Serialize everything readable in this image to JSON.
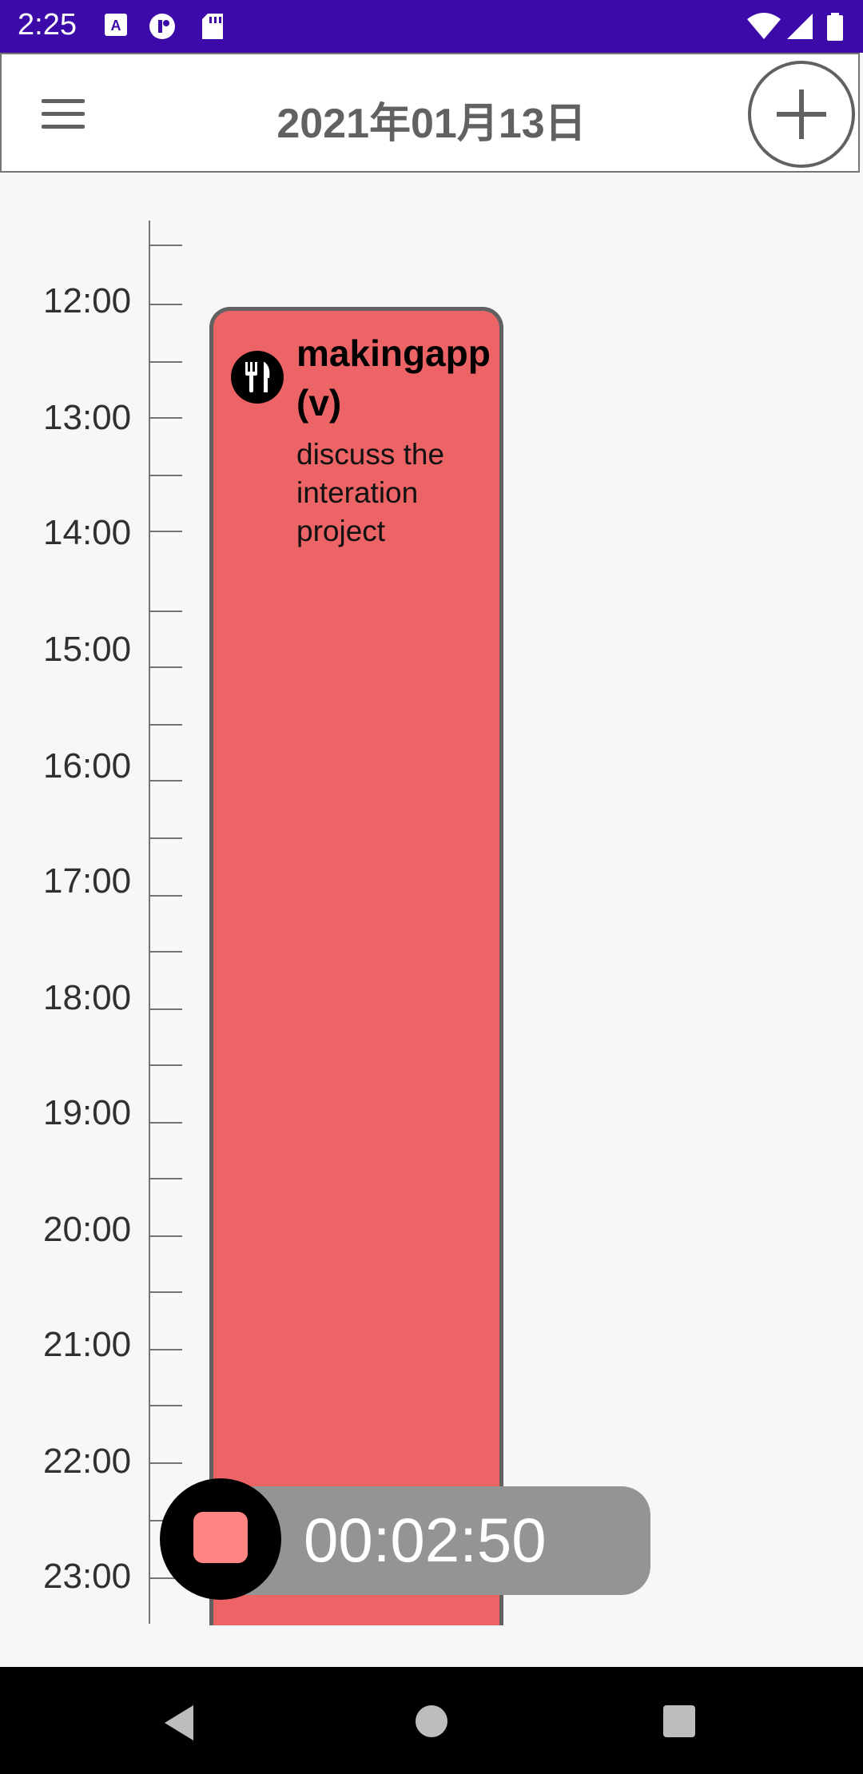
{
  "status_bar": {
    "time": "2:25",
    "icons": [
      "a11y-icon",
      "record-icon",
      "sd-card-icon",
      "wifi-icon",
      "signal-icon",
      "battery-icon"
    ]
  },
  "app_bar": {
    "title": "2021年01月13日",
    "menu_icon": "hamburger-icon",
    "add_icon": "plus-circle-icon"
  },
  "timeline": {
    "hours": [
      "12:00",
      "13:00",
      "14:00",
      "15:00",
      "16:00",
      "17:00",
      "18:00",
      "19:00",
      "20:00",
      "21:00",
      "22:00",
      "23:00"
    ]
  },
  "event": {
    "title": "makingapp(v)",
    "description": "discuss the interation project",
    "icon": "restaurant-icon",
    "color": "#ec6466"
  },
  "timer": {
    "elapsed": "00:02:50",
    "stop_icon": "stop-icon",
    "stop_color": "#ff8585"
  },
  "nav_bar": {
    "icons": [
      "back-icon",
      "home-icon",
      "recents-icon"
    ]
  }
}
